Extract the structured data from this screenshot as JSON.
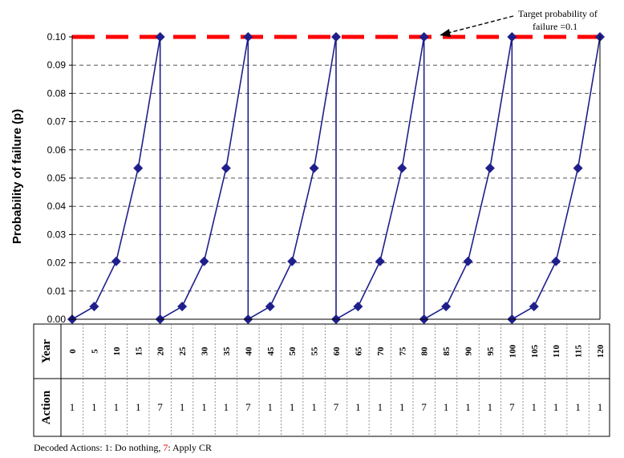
{
  "chart_data": {
    "type": "line",
    "title": "",
    "xlabel": "",
    "ylabel": "Probability of failure (p)",
    "ylim": [
      0,
      0.1
    ],
    "yticks": [
      "0.00",
      "0.01",
      "0.02",
      "0.03",
      "0.04",
      "0.05",
      "0.06",
      "0.07",
      "0.08",
      "0.09",
      "0.10"
    ],
    "grid": true,
    "target": {
      "value": 0.1,
      "color": "#ff0000",
      "label_line1": "Target probability of",
      "label_line2": "failure =0.1"
    },
    "series": [
      {
        "color": "#1f1f8c",
        "points": [
          [
            0,
            0.0
          ],
          [
            5,
            0.0045
          ],
          [
            10,
            0.0205
          ],
          [
            15,
            0.0535
          ],
          [
            20,
            0.1
          ],
          [
            20,
            0.0
          ],
          [
            25,
            0.0045
          ],
          [
            30,
            0.0205
          ],
          [
            35,
            0.0535
          ],
          [
            40,
            0.1
          ],
          [
            40,
            0.0
          ],
          [
            45,
            0.0045
          ],
          [
            50,
            0.0205
          ],
          [
            55,
            0.0535
          ],
          [
            60,
            0.1
          ],
          [
            60,
            0.0
          ],
          [
            65,
            0.0045
          ],
          [
            70,
            0.0205
          ],
          [
            75,
            0.0535
          ],
          [
            80,
            0.1
          ],
          [
            80,
            0.0
          ],
          [
            85,
            0.0045
          ],
          [
            90,
            0.0205
          ],
          [
            95,
            0.0535
          ],
          [
            100,
            0.1
          ],
          [
            100,
            0.0
          ],
          [
            105,
            0.0045
          ],
          [
            110,
            0.0205
          ],
          [
            115,
            0.0535
          ],
          [
            120,
            0.1
          ]
        ]
      }
    ]
  },
  "table": {
    "year_header": "Year",
    "action_header": "Action",
    "years": [
      "0",
      "5",
      "10",
      "15",
      "20",
      "25",
      "30",
      "35",
      "40",
      "45",
      "50",
      "55",
      "60",
      "65",
      "70",
      "75",
      "80",
      "85",
      "90",
      "95",
      "100",
      "105",
      "110",
      "115",
      "120"
    ],
    "actions": [
      "1",
      "1",
      "1",
      "1",
      "7",
      "1",
      "1",
      "1",
      "7",
      "1",
      "1",
      "1",
      "7",
      "1",
      "1",
      "1",
      "7",
      "1",
      "1",
      "1",
      "7",
      "1",
      "1",
      "1",
      "1"
    ],
    "highlight_action": "7",
    "highlight_color": "#e00000"
  },
  "footer": {
    "prefix": "Decoded Actions:  1: Do nothing, ",
    "code": "7",
    "suffix": ": Apply CR"
  }
}
